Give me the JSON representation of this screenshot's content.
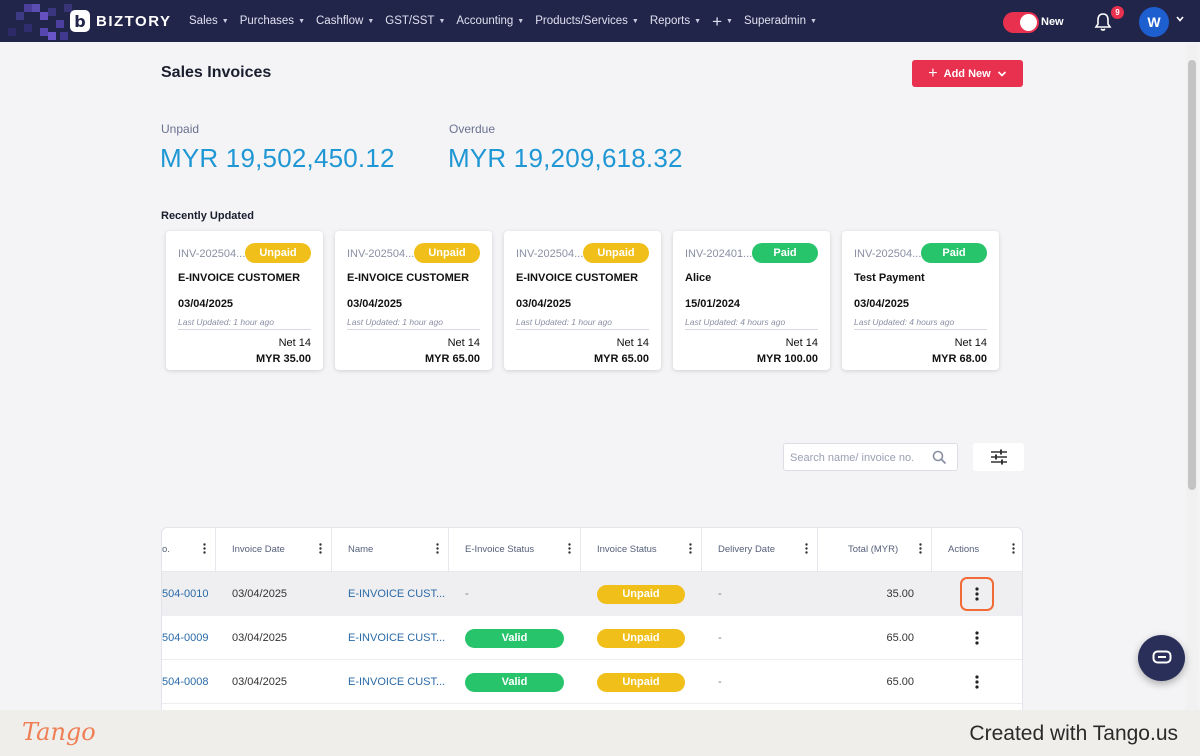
{
  "nav": {
    "brand": "BIZTORY",
    "items": [
      {
        "label": "Sales"
      },
      {
        "label": "Purchases"
      },
      {
        "label": "Cashflow"
      },
      {
        "label": "GST/SST"
      },
      {
        "label": "Accounting"
      },
      {
        "label": "Products/Services"
      },
      {
        "label": "Reports"
      }
    ],
    "plus_icon": "plus-icon",
    "superadmin": "Superadmin",
    "toggle_label": "New",
    "toggle_on": true,
    "notification_count": "9",
    "avatar_initial": "W"
  },
  "page": {
    "title": "Sales Invoices",
    "add_new_label": "Add New",
    "unpaid_label": "Unpaid",
    "unpaid_value": "MYR 19,502,450.12",
    "overdue_label": "Overdue",
    "overdue_value": "MYR 19,209,618.32",
    "recent_title": "Recently Updated"
  },
  "cards": [
    {
      "number": "INV-202504...",
      "status": "Unpaid",
      "name": "E-INVOICE CUSTOMER",
      "date": "03/04/2025",
      "updated": "Last Updated: 1 hour ago",
      "term": "Net 14",
      "amount": "MYR 35.00"
    },
    {
      "number": "INV-202504...",
      "status": "Unpaid",
      "name": "E-INVOICE CUSTOMER",
      "date": "03/04/2025",
      "updated": "Last Updated: 1 hour ago",
      "term": "Net 14",
      "amount": "MYR 65.00"
    },
    {
      "number": "INV-202504...",
      "status": "Unpaid",
      "name": "E-INVOICE CUSTOMER",
      "date": "03/04/2025",
      "updated": "Last Updated: 1 hour ago",
      "term": "Net 14",
      "amount": "MYR 65.00"
    },
    {
      "number": "INV-202401...",
      "status": "Paid",
      "name": "Alice",
      "date": "15/01/2024",
      "updated": "Last Updated: 4 hours ago",
      "term": "Net 14",
      "amount": "MYR 100.00"
    },
    {
      "number": "INV-202504...",
      "status": "Paid",
      "name": "Test Payment",
      "date": "03/04/2025",
      "updated": "Last Updated: 4 hours ago",
      "term": "Net 14",
      "amount": "MYR 68.00"
    }
  ],
  "search": {
    "placeholder": "Search name/ invoice no."
  },
  "table": {
    "columns": [
      "o.",
      "Invoice Date",
      "Name",
      "E-Invoice Status",
      "Invoice Status",
      "Delivery Date",
      "Total (MYR)",
      "Actions"
    ],
    "rows": [
      {
        "number": "504-0010",
        "date": "03/04/2025",
        "name": "E-INVOICE CUST...",
        "einvoice": "-",
        "status": "Unpaid",
        "delivery": "-",
        "total": "35.00"
      },
      {
        "number": "504-0009",
        "date": "03/04/2025",
        "name": "E-INVOICE CUST...",
        "einvoice": "Valid",
        "status": "Unpaid",
        "delivery": "-",
        "total": "65.00"
      },
      {
        "number": "504-0008",
        "date": "03/04/2025",
        "name": "E-INVOICE CUST...",
        "einvoice": "Valid",
        "status": "Unpaid",
        "delivery": "-",
        "total": "65.00"
      }
    ]
  },
  "footer": {
    "logo": "Tango",
    "credit": "Created with Tango.us"
  },
  "colors": {
    "nav_bg": "#22254a",
    "accent": "#e8304f",
    "link": "#1f97d4",
    "paid": "#27c46b",
    "unpaid": "#f0bf1a",
    "focus": "#f26a35"
  }
}
